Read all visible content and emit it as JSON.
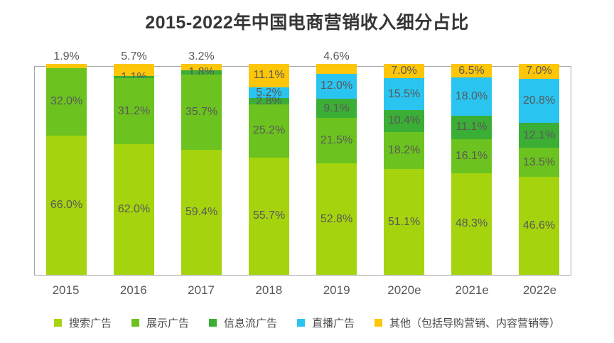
{
  "title": "2015-2022年中国电商营销收入细分占比",
  "colors": {
    "search_ads": "#a5d40e",
    "display_ads": "#6cc31f",
    "feed_ads": "#3bae35",
    "live_ads": "#29c5f0",
    "other_ads": "#fdc608",
    "value_label": "#595959",
    "axis_label": "#595959",
    "frame": "#a6a6a6",
    "title": "#363636"
  },
  "chart_data": {
    "type": "bar",
    "stacked": true,
    "normalized_percent": true,
    "grid": false,
    "legend_position": "bottom",
    "value_suffix": "%",
    "title": "2015-2022年中国电商营销收入细分占比",
    "xlabel": "",
    "ylabel": "",
    "ylim": [
      0,
      100
    ],
    "categories": [
      "2015",
      "2016",
      "2017",
      "2018",
      "2019",
      "2020e",
      "2021e",
      "2022e"
    ],
    "series": [
      {
        "name": "搜索广告",
        "color": "#a5d40e",
        "values": [
          66.0,
          62.0,
          59.4,
          55.7,
          52.8,
          51.1,
          48.3,
          46.6
        ]
      },
      {
        "name": "展示广告",
        "color": "#6cc31f",
        "values": [
          32.0,
          31.2,
          35.7,
          25.2,
          21.5,
          18.2,
          16.1,
          13.5
        ]
      },
      {
        "name": "信息流广告",
        "color": "#3bae35",
        "values": [
          null,
          1.1,
          1.8,
          2.8,
          9.1,
          10.4,
          11.1,
          12.1
        ]
      },
      {
        "name": "直播广告",
        "color": "#29c5f0",
        "values": [
          null,
          null,
          null,
          5.2,
          12.0,
          15.5,
          18.0,
          20.8
        ]
      },
      {
        "name": "其他（包括导购营销、内容营销等）",
        "color": "#fdc608",
        "values": [
          1.9,
          5.7,
          3.2,
          11.1,
          4.6,
          7.0,
          6.5,
          7.0
        ],
        "label_outside": [
          true,
          true,
          true,
          false,
          true,
          false,
          false,
          false
        ]
      }
    ]
  }
}
